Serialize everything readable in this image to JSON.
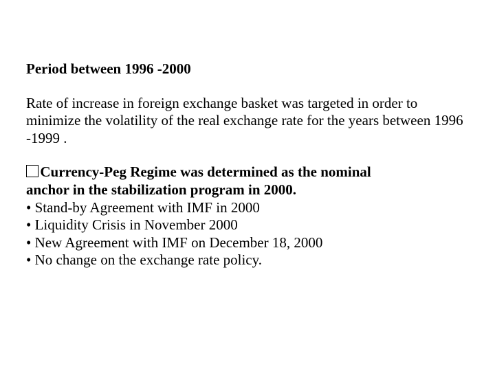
{
  "heading": "Period between 1996 -2000",
  "paragraph": "Rate of increase in foreign exchange basket was targeted in order to minimize the volatility of the real exchange rate for the years between 1996 -1999 .",
  "subheading_line1": "Currency-Peg Regime was determined as the nominal",
  "subheading_line2": "anchor in the stabilization program in 2000.",
  "bullets": {
    "b1": "• Stand-by Agreement with IMF in 2000",
    "b2": "• Liquidity Crisis in November 2000",
    "b3": "• New Agreement with IMF on December 18, 2000",
    "b4": "• No change on the exchange rate policy."
  }
}
